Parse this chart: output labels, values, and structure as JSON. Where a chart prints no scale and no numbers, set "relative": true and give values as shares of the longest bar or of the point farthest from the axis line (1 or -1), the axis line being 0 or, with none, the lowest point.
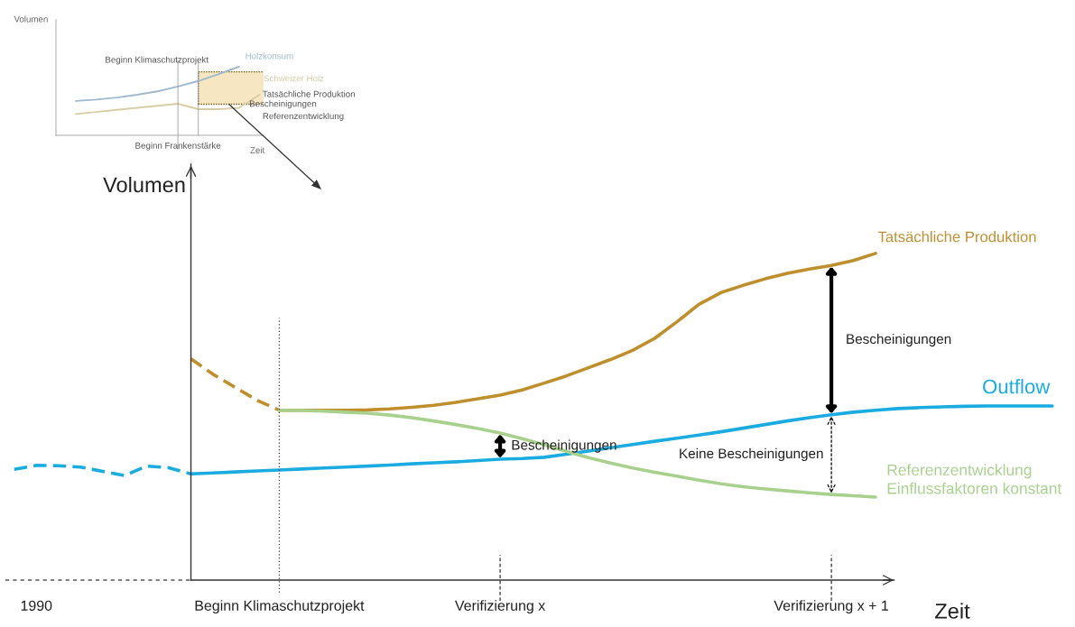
{
  "chart_data": [
    {
      "type": "line",
      "relative": true,
      "xlabel": "Zeit",
      "ylabel": "Volumen",
      "categories": [
        null,
        null,
        null,
        null,
        null,
        null,
        null,
        null,
        null,
        null
      ],
      "grid": false,
      "legend": false,
      "marker": "none",
      "series": [
        {
          "name": "Holzkonsum",
          "color": "#9dbad0",
          "line_style": "solid",
          "values": [
            0.5,
            0.52,
            0.55,
            0.59,
            0.64,
            0.71,
            0.79,
            0.89,
            1.0,
            null
          ]
        },
        {
          "name": "Schweizer Holz",
          "color": "#d8cea6",
          "line_style": "solid",
          "values": [
            0.31,
            0.34,
            0.37,
            0.4,
            0.43,
            0.46,
            0.38,
            0.38,
            0.4,
            0.59
          ]
        }
      ],
      "annotations": [
        "Tatsächliche Produktion",
        "Bescheinigungen",
        "Referenzentwicklung",
        "Beginn Klimaschutzprojekt",
        "Beginn Frankenstärke"
      ]
    },
    {
      "type": "line",
      "relative": true,
      "xlabel": "Zeit",
      "ylabel": "Volumen",
      "categories": [
        null,
        "1990",
        null,
        null,
        null,
        null,
        null,
        null,
        null,
        null,
        null,
        null,
        "Beginn Klimaschutzprojekt",
        null,
        null,
        null,
        null,
        null,
        null,
        null,
        null,
        null,
        "Verifizierung x",
        null,
        null,
        null,
        null,
        null,
        null,
        null,
        null,
        null,
        null,
        null,
        null,
        null,
        null,
        "Verifizierung x + 1",
        null,
        null,
        null,
        null,
        null,
        null,
        null,
        null,
        null,
        null
      ],
      "grid": false,
      "legend": false,
      "marker": "none",
      "series": [
        {
          "name": "Tatsächliche Produktion",
          "color": "#bf8f2e",
          "line_style": "solid",
          "values": [
            null,
            null,
            null,
            null,
            null,
            null,
            null,
            null,
            null,
            null,
            null,
            null,
            0.52,
            0.52,
            0.52,
            0.52,
            0.521,
            0.524,
            0.529,
            0.535,
            0.544,
            0.555,
            0.566,
            0.582,
            0.603,
            0.625,
            0.65,
            0.675,
            0.703,
            0.74,
            0.79,
            0.844,
            0.88,
            0.902,
            0.922,
            0.939,
            0.952,
            0.963,
            0.978,
            1.0,
            null,
            null,
            null,
            null,
            null,
            null,
            null,
            null
          ]
        },
        {
          "color": "#bf8f2e",
          "line_style": "dashed",
          "values": [
            null,
            null,
            null,
            null,
            null,
            null,
            null,
            null,
            0.677,
            0.63,
            0.59,
            0.55,
            0.52,
            null,
            null,
            null,
            null,
            null,
            null,
            null,
            null,
            null,
            null,
            null,
            null,
            null,
            null,
            null,
            null,
            null,
            null,
            null,
            null,
            null,
            null,
            null,
            null,
            null,
            null,
            null,
            null,
            null,
            null,
            null,
            null,
            null,
            null,
            null
          ]
        },
        {
          "name": "Outflow",
          "color": "#1aace0",
          "line_style": "solid",
          "values": [
            null,
            null,
            null,
            null,
            null,
            null,
            null,
            null,
            0.325,
            0.328,
            0.331,
            0.334,
            0.337,
            0.34,
            0.343,
            0.346,
            0.349,
            0.352,
            0.356,
            0.359,
            0.362,
            0.366,
            0.37,
            0.372,
            0.376,
            0.385,
            0.395,
            0.405,
            0.415,
            0.425,
            0.434,
            0.444,
            0.454,
            0.465,
            0.476,
            0.487,
            0.497,
            0.506,
            0.514,
            0.52,
            0.525,
            0.528,
            0.53,
            0.532,
            0.533,
            0.533,
            0.533,
            0.533
          ]
        },
        {
          "color": "#1aace0",
          "line_style": "dashed",
          "values": [
            0.339,
            0.351,
            0.35,
            0.346,
            0.333,
            0.32,
            0.349,
            0.344,
            0.325,
            null,
            null,
            null,
            null,
            null,
            null,
            null,
            null,
            null,
            null,
            null,
            null,
            null,
            null,
            null,
            null,
            null,
            null,
            null,
            null,
            null,
            null,
            null,
            null,
            null,
            null,
            null,
            null,
            null,
            null,
            null,
            null,
            null,
            null,
            null,
            null,
            null,
            null,
            null
          ]
        },
        {
          "name": "Referenzentwicklung\nEinflussfaktoren konstant",
          "color": "#a9d18e",
          "line_style": "solid",
          "values": [
            null,
            null,
            null,
            null,
            null,
            null,
            null,
            null,
            null,
            null,
            null,
            null,
            0.52,
            0.519,
            0.517,
            0.514,
            0.511,
            0.505,
            0.497,
            0.487,
            0.476,
            0.464,
            0.45,
            0.433,
            0.414,
            0.394,
            0.375,
            0.358,
            0.343,
            0.33,
            0.318,
            0.306,
            0.295,
            0.286,
            0.279,
            0.273,
            0.267,
            0.262,
            0.258,
            0.254,
            null,
            null,
            null,
            null,
            null,
            null,
            null,
            null
          ]
        }
      ],
      "ref_lines": [
        {
          "axis": "x",
          "value": "Beginn Klimaschutzprojekt",
          "color": "#404040",
          "line_style": "dotted"
        }
      ],
      "annotations": [
        "Bescheinigungen",
        "Bescheinigungen",
        "Keine Bescheinigungen"
      ]
    }
  ]
}
